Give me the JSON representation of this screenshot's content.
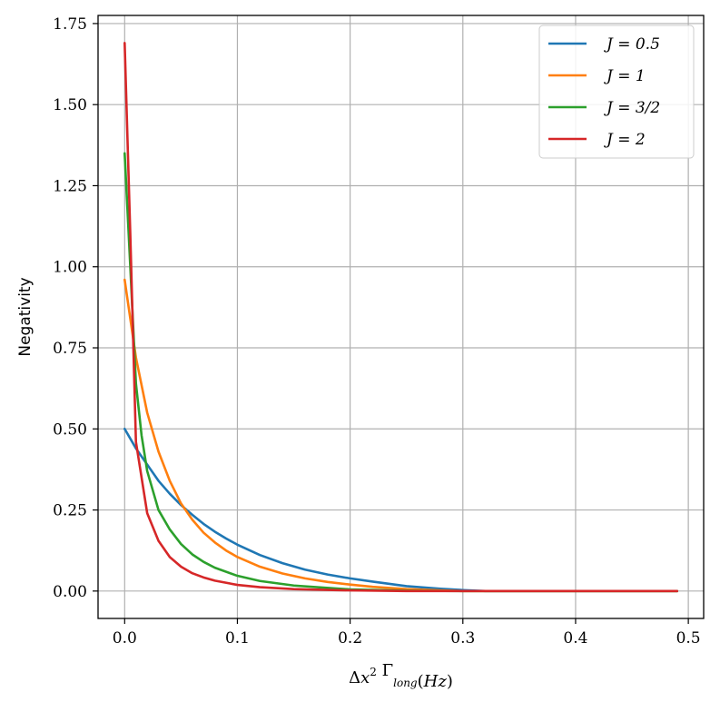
{
  "chart_data": {
    "type": "line",
    "xlabel": "Δx² Γ_long(Hz)",
    "ylabel": "Negativity",
    "xlim": [
      -0.0236,
      0.5136
    ],
    "ylim": [
      -0.0845,
      1.775
    ],
    "xticks": [
      0.0,
      0.1,
      0.2,
      0.3,
      0.4,
      0.5
    ],
    "xtick_labels": [
      "0.0",
      "0.1",
      "0.2",
      "0.3",
      "0.4",
      "0.5"
    ],
    "yticks": [
      0.0,
      0.25,
      0.5,
      0.75,
      1.0,
      1.25,
      1.5,
      1.75
    ],
    "ytick_labels": [
      "0.00",
      "0.25",
      "0.50",
      "0.75",
      "1.00",
      "1.25",
      "1.50",
      "1.75"
    ],
    "grid": true,
    "legend_position": "top-right",
    "series": [
      {
        "name": "J = 0.5",
        "color": "#1f77b4",
        "x": [
          0,
          0.01,
          0.02,
          0.03,
          0.04,
          0.05,
          0.06,
          0.07,
          0.08,
          0.09,
          0.1,
          0.12,
          0.14,
          0.16,
          0.18,
          0.2,
          0.22,
          0.25,
          0.28,
          0.3,
          0.32,
          0.35,
          0.4,
          0.45,
          0.49
        ],
        "y": [
          0.5,
          0.44,
          0.39,
          0.34,
          0.3,
          0.265,
          0.235,
          0.207,
          0.183,
          0.162,
          0.143,
          0.111,
          0.086,
          0.066,
          0.051,
          0.039,
          0.029,
          0.015,
          0.007,
          0.003,
          0.0,
          0.0,
          0.0,
          0.0,
          0.0
        ]
      },
      {
        "name": "J = 1",
        "color": "#ff7f0e",
        "x": [
          0,
          0.01,
          0.02,
          0.03,
          0.04,
          0.05,
          0.06,
          0.07,
          0.08,
          0.09,
          0.1,
          0.12,
          0.14,
          0.16,
          0.18,
          0.2,
          0.22,
          0.25,
          0.28,
          0.3,
          0.35,
          0.4,
          0.45,
          0.49
        ],
        "y": [
          0.96,
          0.72,
          0.55,
          0.43,
          0.34,
          0.27,
          0.22,
          0.18,
          0.15,
          0.125,
          0.105,
          0.075,
          0.054,
          0.039,
          0.028,
          0.02,
          0.013,
          0.006,
          0.002,
          0.0,
          0.0,
          0.0,
          0.0,
          0.0
        ]
      },
      {
        "name": "J = 3/2",
        "color": "#2ca02c",
        "x": [
          0,
          0.005,
          0.01,
          0.015,
          0.02,
          0.03,
          0.04,
          0.05,
          0.06,
          0.07,
          0.08,
          0.1,
          0.12,
          0.15,
          0.2,
          0.25,
          0.3,
          0.35,
          0.4,
          0.45,
          0.49
        ],
        "y": [
          1.35,
          1.0,
          0.64,
          0.48,
          0.37,
          0.25,
          0.19,
          0.145,
          0.113,
          0.09,
          0.072,
          0.047,
          0.031,
          0.017,
          0.005,
          0.001,
          0.0,
          0.0,
          0.0,
          0.0,
          0.0
        ]
      },
      {
        "name": "J = 2",
        "color": "#d62728",
        "x": [
          0,
          0.005,
          0.01,
          0.02,
          0.03,
          0.04,
          0.05,
          0.06,
          0.07,
          0.08,
          0.1,
          0.12,
          0.15,
          0.2,
          0.25,
          0.3,
          0.35,
          0.4,
          0.45,
          0.49
        ],
        "y": [
          1.69,
          1.1,
          0.46,
          0.24,
          0.155,
          0.105,
          0.075,
          0.055,
          0.042,
          0.032,
          0.019,
          0.012,
          0.006,
          0.002,
          0.0,
          0.0,
          0.0,
          0.0,
          0.0,
          0.0
        ]
      }
    ]
  }
}
